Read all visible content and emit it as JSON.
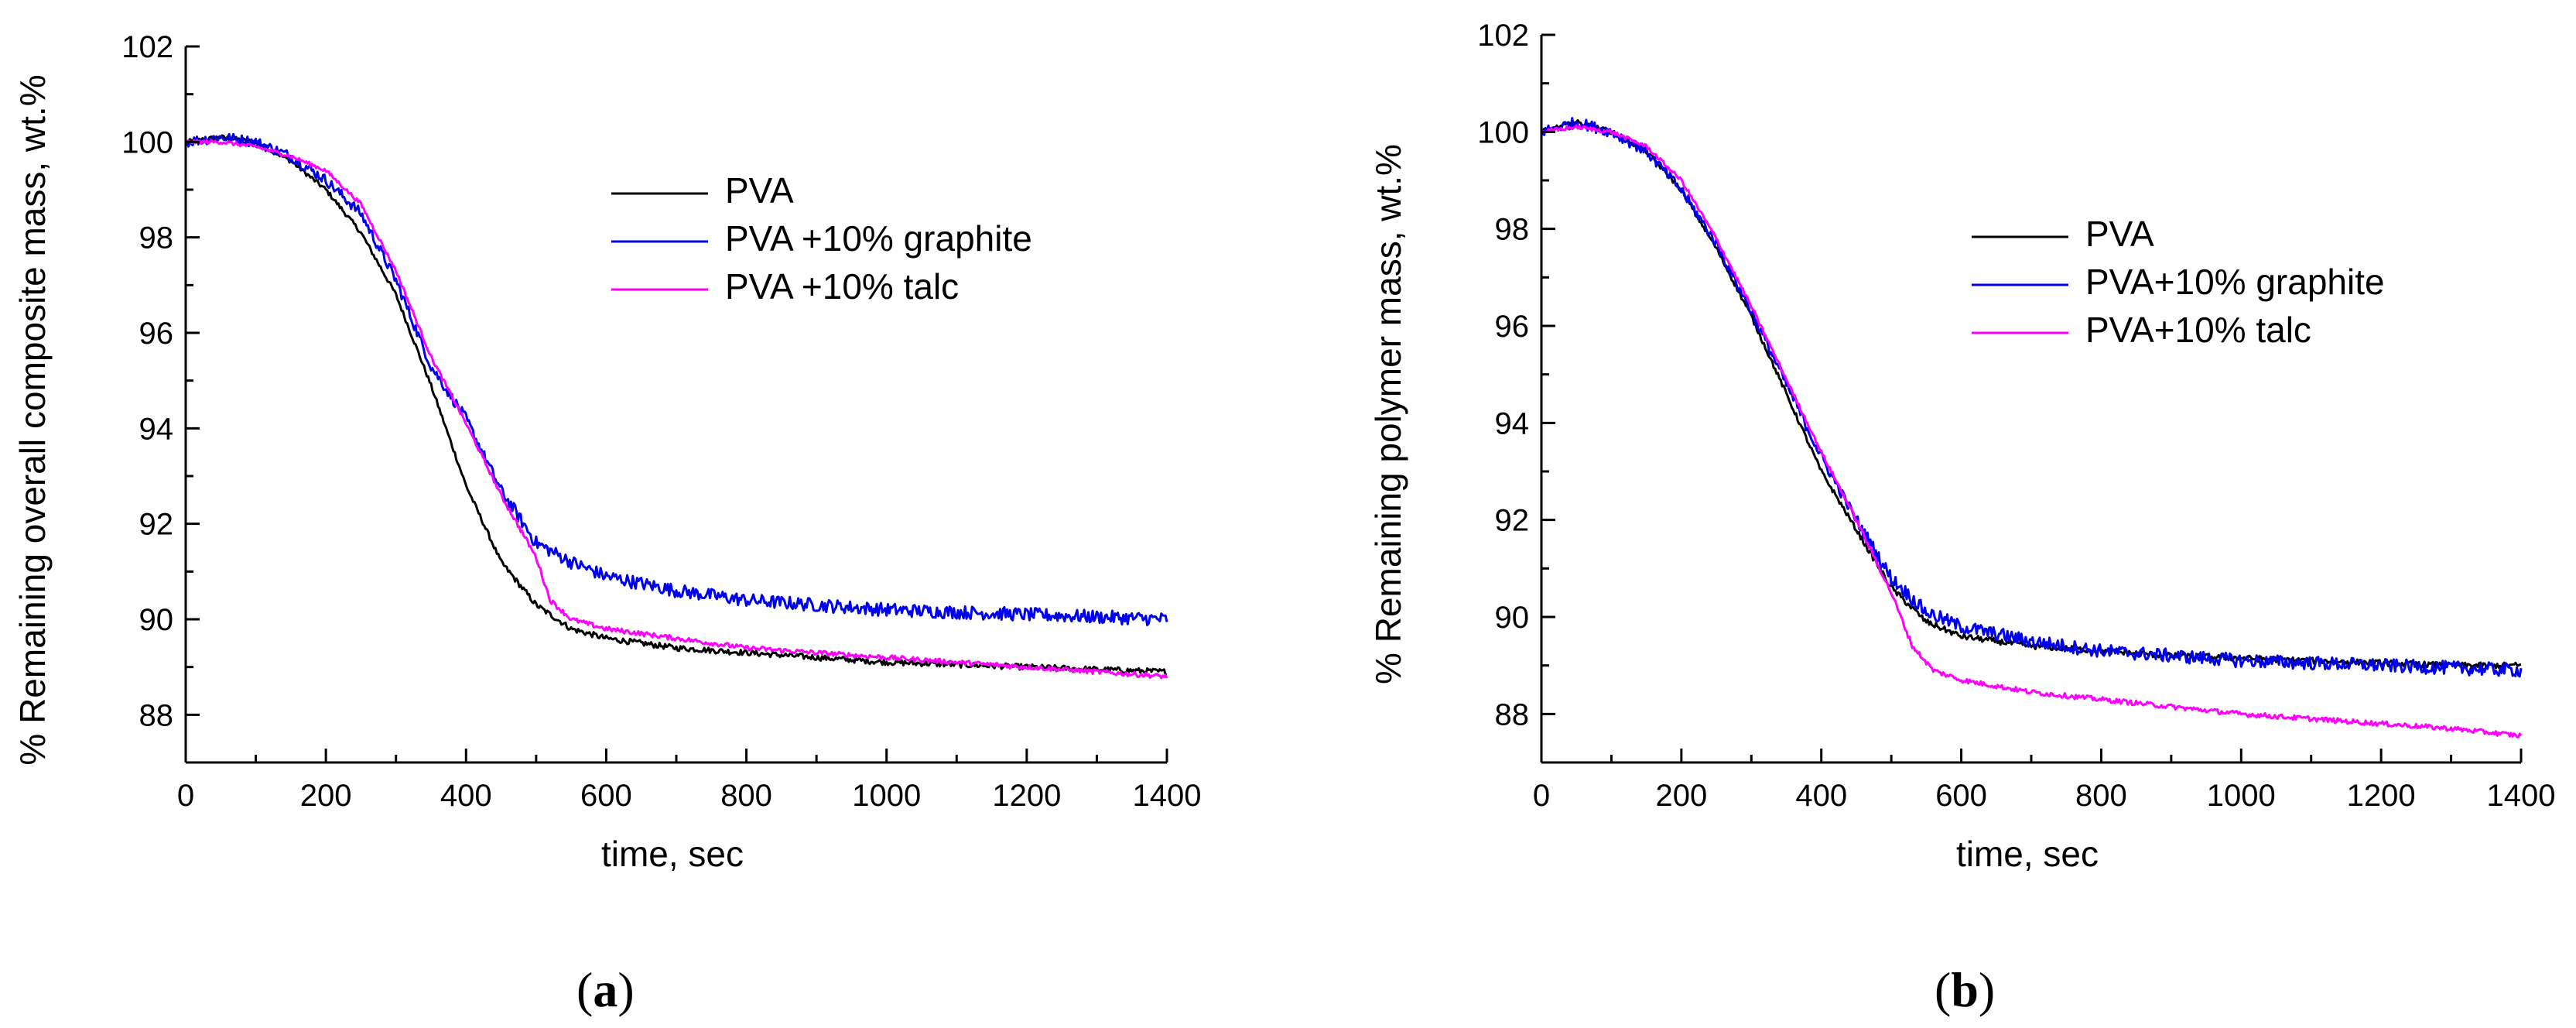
{
  "chart_data": [
    {
      "type": "line",
      "panel": "(a)",
      "panel_letter": "a",
      "xlabel": "time, sec",
      "ylabel": "% Remaining overall composite mass, wt.%",
      "xlim": [
        0,
        1400
      ],
      "ylim": [
        87,
        102
      ],
      "xticks": [
        0,
        200,
        400,
        600,
        800,
        1000,
        1200,
        1400
      ],
      "yticks": [
        88,
        90,
        92,
        94,
        96,
        98,
        100,
        102
      ],
      "legend_position": "upper-middle",
      "series": [
        {
          "name": "PVA",
          "color": "#000000",
          "x": [
            0,
            50,
            100,
            150,
            200,
            250,
            300,
            350,
            400,
            450,
            500,
            550,
            600,
            700,
            800,
            900,
            1000,
            1100,
            1200,
            1300,
            1400
          ],
          "y": [
            100.0,
            100.1,
            100.0,
            99.6,
            99.0,
            98.1,
            96.8,
            94.9,
            92.8,
            91.2,
            90.3,
            89.8,
            89.6,
            89.4,
            89.3,
            89.2,
            89.1,
            89.05,
            89.0,
            88.95,
            88.9
          ]
        },
        {
          "name": "PVA +10% graphite",
          "color": "#0000ee",
          "x": [
            0,
            50,
            100,
            150,
            200,
            250,
            300,
            350,
            400,
            450,
            500,
            550,
            600,
            700,
            800,
            900,
            1000,
            1100,
            1200,
            1300,
            1400
          ],
          "y": [
            100.0,
            100.1,
            100.0,
            99.7,
            99.2,
            98.5,
            97.1,
            95.3,
            94.2,
            92.7,
            91.6,
            91.2,
            90.9,
            90.6,
            90.4,
            90.3,
            90.2,
            90.15,
            90.1,
            90.05,
            90.0
          ]
        },
        {
          "name": "PVA +10% talc",
          "color": "#ff00ff",
          "x": [
            0,
            50,
            100,
            150,
            200,
            250,
            300,
            350,
            400,
            450,
            500,
            520,
            550,
            600,
            700,
            800,
            900,
            1000,
            1100,
            1200,
            1300,
            1400
          ],
          "y": [
            100.0,
            100.0,
            99.9,
            99.7,
            99.4,
            98.7,
            97.3,
            95.5,
            94.1,
            92.6,
            91.3,
            90.4,
            90.0,
            89.8,
            89.6,
            89.4,
            89.3,
            89.2,
            89.1,
            89.0,
            88.9,
            88.8
          ]
        }
      ]
    },
    {
      "type": "line",
      "panel": "(b)",
      "panel_letter": "b",
      "xlabel": "time, sec",
      "ylabel": "% Remaining polymer mass, wt.%",
      "xlim": [
        0,
        1400
      ],
      "ylim": [
        87,
        102
      ],
      "xticks": [
        0,
        200,
        400,
        600,
        800,
        1000,
        1200,
        1400
      ],
      "yticks": [
        88,
        90,
        92,
        94,
        96,
        98,
        100,
        102
      ],
      "legend_position": "right-middle",
      "series": [
        {
          "name": "PVA",
          "color": "#000000",
          "x": [
            0,
            50,
            100,
            150,
            200,
            250,
            300,
            350,
            400,
            450,
            500,
            550,
            600,
            700,
            800,
            900,
            1000,
            1100,
            1200,
            1300,
            1400
          ],
          "y": [
            100.0,
            100.2,
            100.0,
            99.6,
            98.8,
            97.6,
            96.2,
            94.6,
            93.0,
            91.8,
            90.6,
            89.9,
            89.6,
            89.4,
            89.3,
            89.2,
            89.15,
            89.1,
            89.05,
            89.0,
            89.0
          ]
        },
        {
          "name": "PVA+10% graphite",
          "color": "#0000ee",
          "x": [
            0,
            50,
            100,
            150,
            200,
            250,
            300,
            350,
            400,
            450,
            500,
            550,
            600,
            700,
            800,
            900,
            1000,
            1100,
            1200,
            1300,
            1400
          ],
          "y": [
            100.0,
            100.2,
            100.0,
            99.6,
            98.8,
            97.7,
            96.3,
            94.8,
            93.3,
            92.0,
            90.8,
            90.1,
            89.8,
            89.5,
            89.3,
            89.2,
            89.1,
            89.05,
            89.0,
            88.95,
            88.9
          ]
        },
        {
          "name": "PVA+10% talc",
          "color": "#ff00ff",
          "x": [
            0,
            50,
            100,
            150,
            200,
            250,
            300,
            350,
            400,
            450,
            500,
            530,
            560,
            600,
            700,
            800,
            900,
            1000,
            1100,
            1200,
            1300,
            1400
          ],
          "y": [
            100.0,
            100.1,
            100.0,
            99.7,
            99.0,
            97.8,
            96.4,
            94.9,
            93.4,
            92.0,
            90.5,
            89.4,
            88.9,
            88.7,
            88.45,
            88.3,
            88.15,
            88.0,
            87.9,
            87.8,
            87.7,
            87.55
          ]
        }
      ]
    }
  ]
}
